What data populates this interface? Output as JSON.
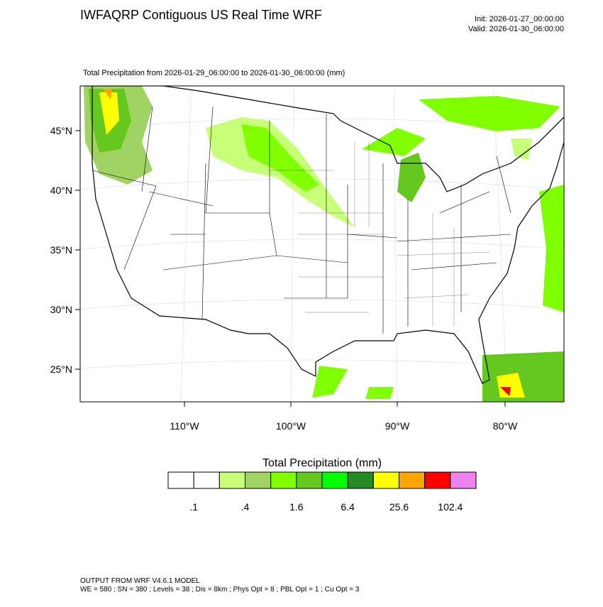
{
  "header": {
    "title": "IWFAQRP Contiguous US Real Time WRF",
    "init": "Init: 2026-01-27_00:00:00",
    "valid": "Valid: 2026-01-30_06:00:00"
  },
  "map": {
    "subtitle": "Total Precipitation from 2026-01-29_06:00:00 to 2026-01-30_06:00:00   (mm)",
    "lat_labels": [
      "45°N",
      "40°N",
      "35°N",
      "30°N",
      "25°N"
    ],
    "lon_labels": [
      "110°W",
      "100°W",
      "90°W",
      "80°W"
    ]
  },
  "colorbar": {
    "title": "Total Precipitation  (mm)",
    "colors": [
      "#ffffff",
      "#ffffff",
      "#c8ff78",
      "#a0d264",
      "#80ff00",
      "#64c81e",
      "#00ff00",
      "#228b22",
      "#ffff00",
      "#ffa500",
      "#ff0000",
      "#ee82ee"
    ],
    "labels": [
      ".1",
      ".4",
      "1.6",
      "6.4",
      "25.6",
      "102.4"
    ]
  },
  "footer": {
    "line1": "OUTPUT FROM WRF V4.6.1 MODEL",
    "line2": "WE = 580 ; SN = 380 ; Levels = 38 ; Dis = 8km ; Phys Opt = 8 ; PBL Opt = 1 ; Cu Opt = 3"
  }
}
